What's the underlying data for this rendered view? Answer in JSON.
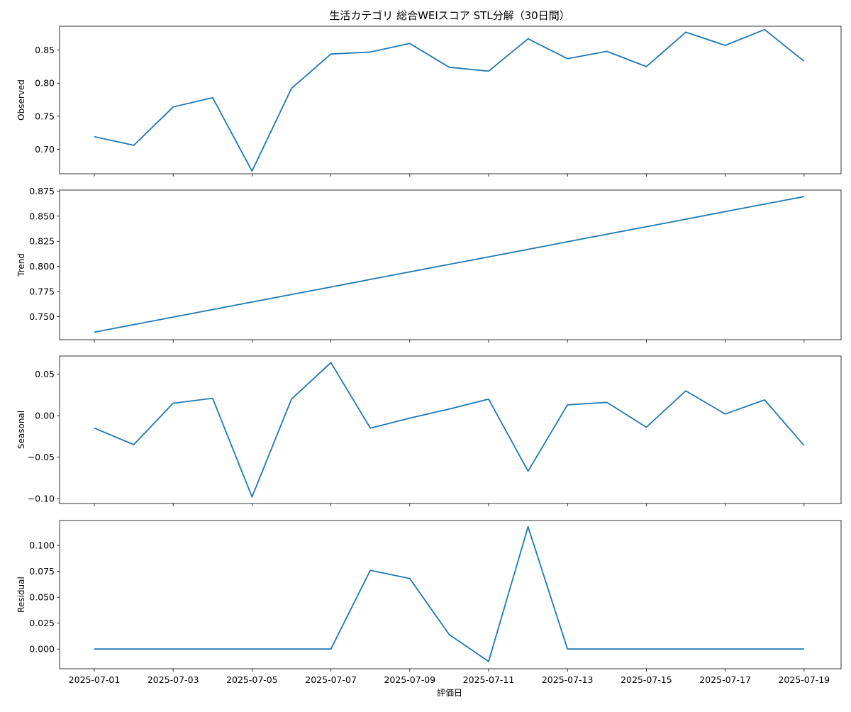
{
  "chart_data": {
    "type": "line",
    "title": "生活カテゴリ 総合WEIスコア STL分解（30日間）",
    "xlabel": "評価日",
    "x": [
      "2025-07-01",
      "2025-07-02",
      "2025-07-03",
      "2025-07-04",
      "2025-07-05",
      "2025-07-06",
      "2025-07-07",
      "2025-07-08",
      "2025-07-09",
      "2025-07-10",
      "2025-07-11",
      "2025-07-12",
      "2025-07-13",
      "2025-07-14",
      "2025-07-15",
      "2025-07-16",
      "2025-07-17",
      "2025-07-18",
      "2025-07-19"
    ],
    "x_tick_labels": [
      "2025-07-01",
      "2025-07-03",
      "2025-07-05",
      "2025-07-07",
      "2025-07-09",
      "2025-07-11",
      "2025-07-13",
      "2025-07-15",
      "2025-07-17",
      "2025-07-19"
    ],
    "line_color": "#1f77b4",
    "panels": [
      {
        "ylabel": "Observed",
        "ylim": [
          0.663,
          0.886
        ],
        "yticks": [
          "0.70",
          "0.75",
          "0.80",
          "0.85"
        ],
        "values": [
          0.719,
          0.706,
          0.764,
          0.778,
          0.667,
          0.792,
          0.844,
          0.847,
          0.86,
          0.824,
          0.818,
          0.867,
          0.837,
          0.848,
          0.825,
          0.877,
          0.857,
          0.881,
          0.833
        ]
      },
      {
        "ylabel": "Trend",
        "ylim": [
          0.727,
          0.876
        ],
        "yticks": [
          "0.750",
          "0.775",
          "0.800",
          "0.825",
          "0.850",
          "0.875"
        ],
        "values": [
          0.7345,
          0.742,
          0.7495,
          0.757,
          0.7645,
          0.772,
          0.7795,
          0.787,
          0.7945,
          0.802,
          0.8095,
          0.817,
          0.8245,
          0.832,
          0.8395,
          0.847,
          0.8545,
          0.862,
          0.8695
        ]
      },
      {
        "ylabel": "Seasonal",
        "ylim": [
          -0.106,
          0.072
        ],
        "yticks": [
          "−0.10",
          "−0.05",
          "0.00",
          "0.05"
        ],
        "values": [
          -0.015,
          -0.035,
          0.015,
          0.021,
          -0.098,
          0.02,
          0.064,
          -0.015,
          -0.003,
          0.008,
          0.02,
          -0.067,
          0.013,
          0.016,
          -0.014,
          0.03,
          0.002,
          0.019,
          -0.036
        ]
      },
      {
        "ylabel": "Residual",
        "ylim": [
          -0.019,
          0.124
        ],
        "yticks": [
          "0.000",
          "0.025",
          "0.050",
          "0.075",
          "0.100"
        ],
        "values": [
          0,
          0,
          0,
          0,
          0,
          0,
          0,
          0.076,
          0.068,
          0.014,
          -0.012,
          0.118,
          0,
          0,
          0,
          0,
          0,
          0,
          0
        ]
      }
    ]
  }
}
